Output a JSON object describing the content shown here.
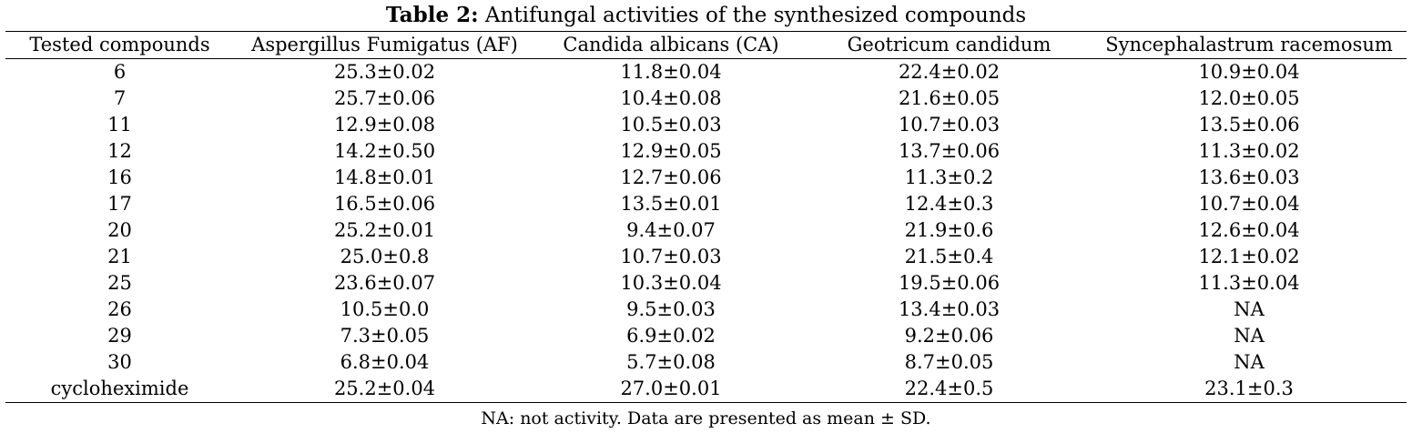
{
  "caption": {
    "label": "Table 2:",
    "text": "Antifungal activities of the synthesized compounds"
  },
  "table": {
    "columns": [
      "Tested compounds",
      "Aspergillus Fumigatus (AF)",
      "Candida albicans (CA)",
      "Geotricum candidum",
      "Syncephalastrum racemosum"
    ],
    "rows": [
      [
        "6",
        "25.3±0.02",
        "11.8±0.04",
        "22.4±0.02",
        "10.9±0.04"
      ],
      [
        "7",
        "25.7±0.06",
        "10.4±0.08",
        "21.6±0.05",
        "12.0±0.05"
      ],
      [
        "11",
        "12.9±0.08",
        "10.5±0.03",
        "10.7±0.03",
        "13.5±0.06"
      ],
      [
        "12",
        "14.2±0.50",
        "12.9±0.05",
        "13.7±0.06",
        "11.3±0.02"
      ],
      [
        "16",
        "14.8±0.01",
        "12.7±0.06",
        "11.3±0.2",
        "13.6±0.03"
      ],
      [
        "17",
        "16.5±0.06",
        "13.5±0.01",
        "12.4±0.3",
        "10.7±0.04"
      ],
      [
        "20",
        "25.2±0.01",
        "9.4±0.07",
        "21.9±0.6",
        "12.6±0.04"
      ],
      [
        "21",
        "25.0±0.8",
        "10.7±0.03",
        "21.5±0.4",
        "12.1±0.02"
      ],
      [
        "25",
        "23.6±0.07",
        "10.3±0.04",
        "19.5±0.06",
        "11.3±0.04"
      ],
      [
        "26",
        "10.5±0.0",
        "9.5±0.03",
        "13.4±0.03",
        "NA"
      ],
      [
        "29",
        "7.3±0.05",
        "6.9±0.02",
        "9.2±0.06",
        "NA"
      ],
      [
        "30",
        "6.8±0.04",
        "5.7±0.08",
        "8.7±0.05",
        "NA"
      ],
      [
        "cycloheximide",
        "25.2±0.04",
        "27.0±0.01",
        "22.4±0.5",
        "23.1±0.3"
      ]
    ]
  },
  "footnote": "NA: not activity. Data are presented as mean ± SD."
}
